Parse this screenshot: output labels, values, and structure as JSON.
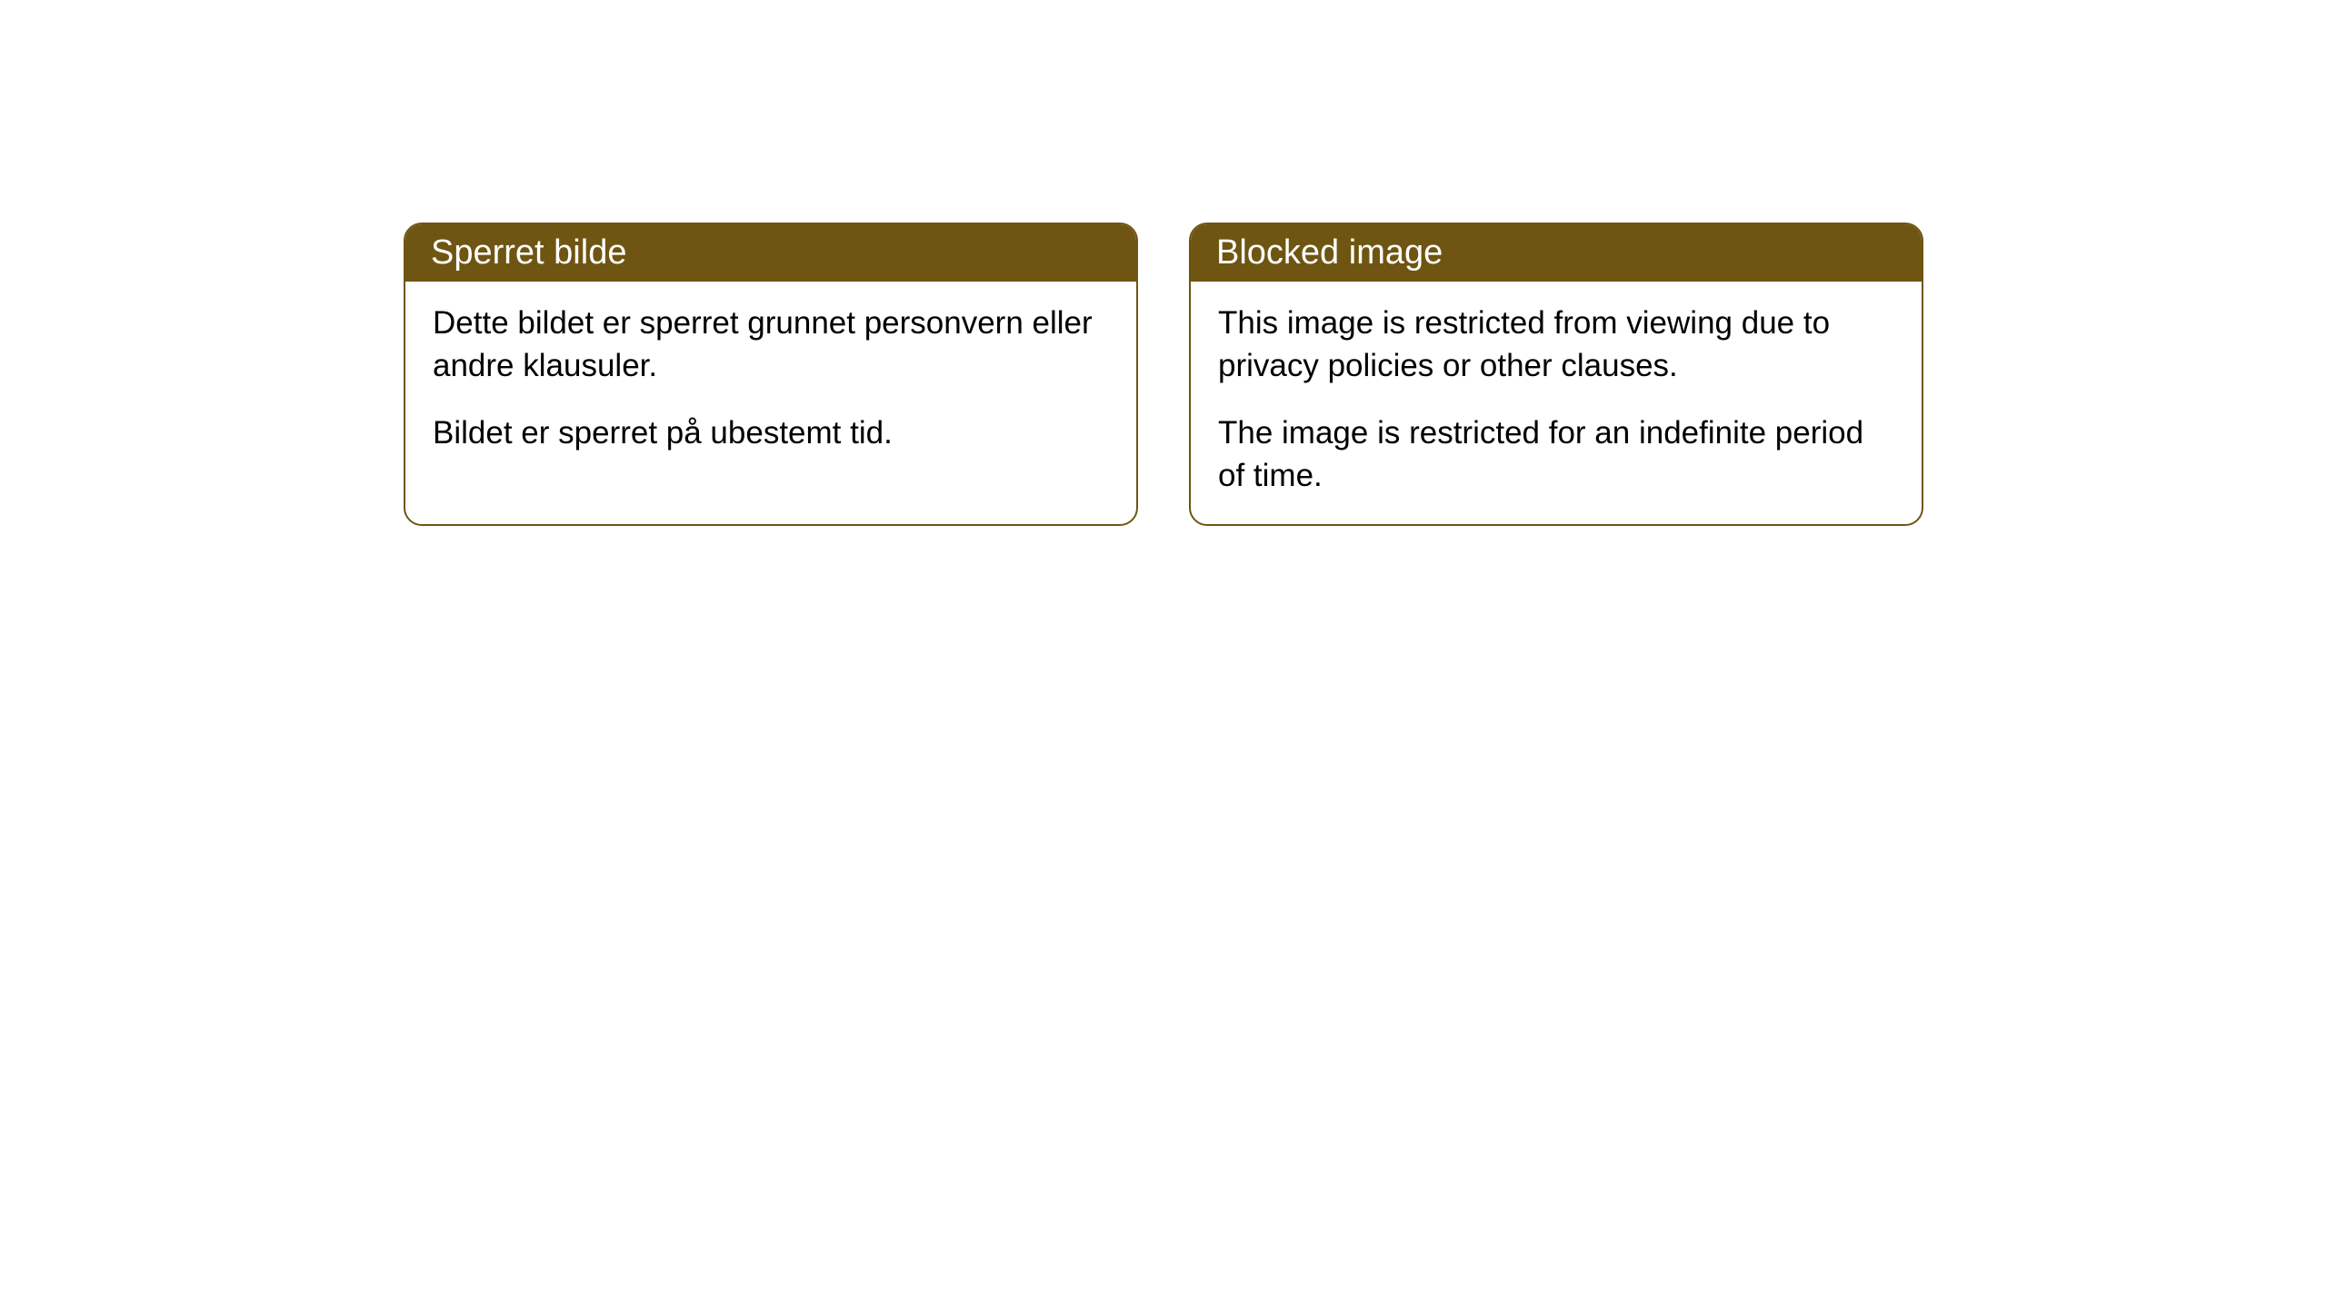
{
  "cards": [
    {
      "title": "Sperret bilde",
      "paragraph1": "Dette bildet er sperret grunnet personvern eller andre klausuler.",
      "paragraph2": "Bildet er sperret på ubestemt tid."
    },
    {
      "title": "Blocked image",
      "paragraph1": "This image is restricted from viewing due to privacy policies or other clauses.",
      "paragraph2": "The image is restricted for an indefinite period of time."
    }
  ],
  "style": {
    "header_background": "#6e5512",
    "header_text_color": "#ffffff",
    "border_color": "#6e5512",
    "body_background": "#ffffff",
    "body_text_color": "#000000",
    "border_radius": 20,
    "title_fontsize": 38,
    "body_fontsize": 35
  }
}
